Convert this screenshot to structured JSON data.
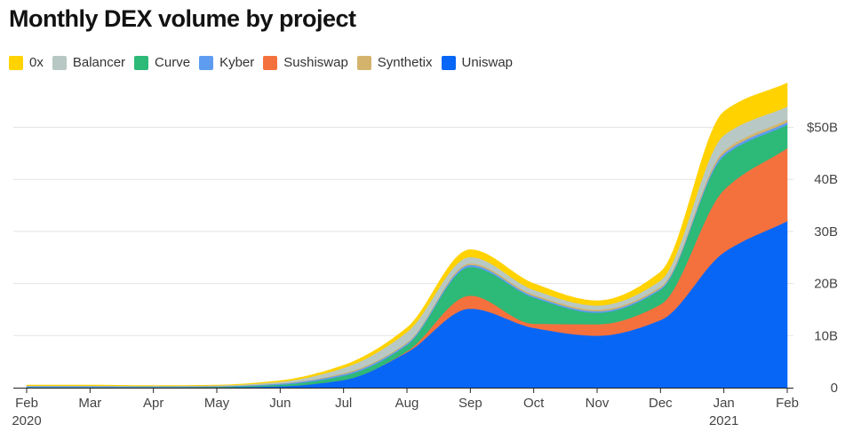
{
  "title": "Monthly DEX volume by project",
  "chart_data": {
    "type": "area",
    "stacked": true,
    "title": "Monthly DEX volume by project",
    "xlabel": "",
    "ylabel": "",
    "x_tick_labels": [
      {
        "label": "Feb",
        "sub": "2020"
      },
      {
        "label": "Mar",
        "sub": ""
      },
      {
        "label": "Apr",
        "sub": ""
      },
      {
        "label": "May",
        "sub": ""
      },
      {
        "label": "Jun",
        "sub": ""
      },
      {
        "label": "Jul",
        "sub": ""
      },
      {
        "label": "Aug",
        "sub": ""
      },
      {
        "label": "Sep",
        "sub": ""
      },
      {
        "label": "Oct",
        "sub": ""
      },
      {
        "label": "Nov",
        "sub": ""
      },
      {
        "label": "Dec",
        "sub": ""
      },
      {
        "label": "Jan",
        "sub": "2021"
      },
      {
        "label": "Feb",
        "sub": ""
      }
    ],
    "x": [
      "2020-02",
      "2020-03",
      "2020-04",
      "2020-05",
      "2020-06",
      "2020-07",
      "2020-08",
      "2020-09",
      "2020-10",
      "2020-11",
      "2020-12",
      "2021-01",
      "2021-02"
    ],
    "y_ticks": [
      0,
      10,
      20,
      30,
      40,
      50
    ],
    "y_tick_labels": [
      "0",
      "10B",
      "20B",
      "30B",
      "40B",
      "$50B"
    ],
    "ylim": [
      0,
      59
    ],
    "unit": "USD billions",
    "grid": true,
    "legend_position": "top-left",
    "series": [
      {
        "name": "Uniswap",
        "color": "#0866f7",
        "values": [
          0.05,
          0.05,
          0.05,
          0.1,
          0.3,
          1.5,
          6.8,
          15.2,
          11.5,
          10.0,
          13.0,
          26.0,
          32.0
        ]
      },
      {
        "name": "Sushiswap",
        "color": "#f4713d",
        "values": [
          0,
          0,
          0,
          0,
          0,
          0,
          0.2,
          2.5,
          0.8,
          2.2,
          3.0,
          12.0,
          14.0
        ]
      },
      {
        "name": "Curve",
        "color": "#2db978",
        "values": [
          0.05,
          0.05,
          0.05,
          0.1,
          0.3,
          0.8,
          1.2,
          5.5,
          5.0,
          2.2,
          2.8,
          6.5,
          4.5
        ]
      },
      {
        "name": "Kyber",
        "color": "#5e9cf0",
        "values": [
          0.2,
          0.2,
          0.15,
          0.1,
          0.2,
          0.3,
          0.3,
          0.4,
          0.3,
          0.3,
          0.3,
          0.5,
          0.5
        ]
      },
      {
        "name": "Synthetix",
        "color": "#d4b46c",
        "values": [
          0.05,
          0.05,
          0.05,
          0.05,
          0.05,
          0.2,
          0.2,
          0.3,
          0.3,
          0.3,
          0.3,
          0.5,
          0.5
        ]
      },
      {
        "name": "Balancer",
        "color": "#b8c8c4",
        "values": [
          0.05,
          0.05,
          0.05,
          0.1,
          0.3,
          1.0,
          2.0,
          1.2,
          0.9,
          0.8,
          1.2,
          3.0,
          2.5
        ]
      },
      {
        "name": "0x",
        "color": "#ffd200",
        "values": [
          0.1,
          0.1,
          0.05,
          0.05,
          0.2,
          0.5,
          0.8,
          1.4,
          1.2,
          0.9,
          1.6,
          4.5,
          4.5
        ]
      }
    ]
  },
  "legend": [
    {
      "name": "0x",
      "color": "#ffd200"
    },
    {
      "name": "Balancer",
      "color": "#b8c8c4"
    },
    {
      "name": "Curve",
      "color": "#2db978"
    },
    {
      "name": "Kyber",
      "color": "#5e9cf0"
    },
    {
      "name": "Sushiswap",
      "color": "#f4713d"
    },
    {
      "name": "Synthetix",
      "color": "#d4b46c"
    },
    {
      "name": "Uniswap",
      "color": "#0866f7"
    }
  ]
}
